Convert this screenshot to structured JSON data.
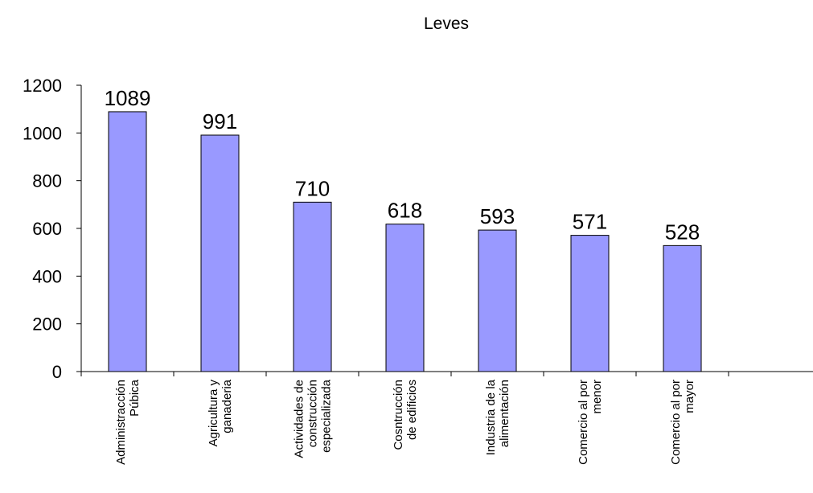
{
  "chart_data": {
    "type": "bar",
    "title": "Leves",
    "xlabel": "",
    "ylabel": "",
    "ylim": [
      0,
      1200
    ],
    "yticks": [
      0,
      200,
      400,
      600,
      800,
      1000,
      1200
    ],
    "grid": false,
    "legend": "none",
    "bar_color": "#9999ff",
    "categories": [
      [
        "Administracción",
        "Púbica"
      ],
      [
        "Agricultura y",
        "ganaderia"
      ],
      [
        "Actividades de",
        "construcción",
        "especializada"
      ],
      [
        "Cosntrucción",
        "de edificios"
      ],
      [
        "Industria de la",
        "alimentación"
      ],
      [
        "Comercio al por",
        "menor"
      ],
      [
        "Comercio al por",
        "mayor"
      ]
    ],
    "values": [
      1089,
      991,
      710,
      618,
      593,
      571,
      528
    ],
    "slots": 8
  }
}
